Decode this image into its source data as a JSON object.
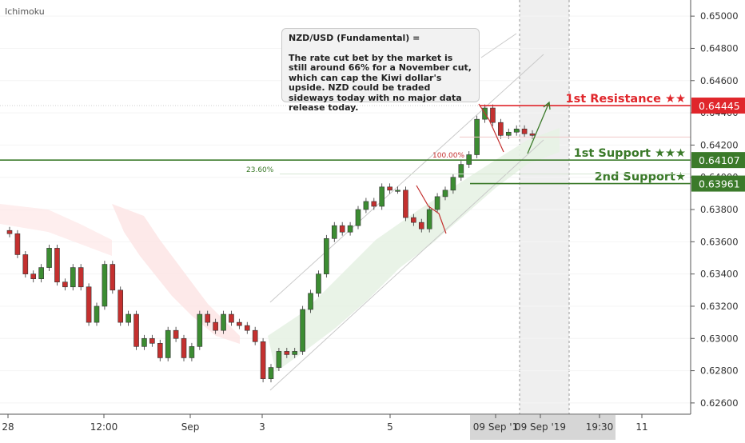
{
  "indicator_label": "Ichimoku",
  "note": {
    "title": "NZD/USD (Fundamental) =",
    "body": "The rate cut bet by the market is still around 66% for a November cut, which can cap the Kiwi dollar's upside. NZD could be traded sideways today with no major data release today."
  },
  "colors": {
    "resistance": "#e0262b",
    "support": "#3b7a2a",
    "up_candle": "#3c8c32",
    "down_candle": "#c4302f"
  },
  "chart_data": {
    "type": "line",
    "title": "",
    "xlabel": "",
    "ylabel": "",
    "ylim": [
      0.6253,
      0.651
    ],
    "y_ticks": [
      "0.65000",
      "0.64800",
      "0.64600",
      "0.64400",
      "0.64200",
      "0.64000",
      "0.63800",
      "0.63600",
      "0.63400",
      "0.63200",
      "0.63000",
      "0.62800",
      "0.62600"
    ],
    "x_ticks": [
      "28",
      "12:00",
      "Sep",
      "3",
      "5",
      "09 Sep '1",
      "09 Sep '19",
      "19:30",
      "11"
    ],
    "series": [
      {
        "values": [
          0.6365,
          0.6352,
          0.634,
          0.6337,
          0.6344,
          0.6356,
          0.6335,
          0.6332,
          0.6344,
          0.6332,
          0.631,
          0.632,
          0.6346,
          0.633,
          0.631,
          0.6315,
          0.6295,
          0.63,
          0.6297,
          0.6288,
          0.6305,
          0.63,
          0.6288,
          0.6295,
          0.6315,
          0.631,
          0.6305,
          0.6315,
          0.631,
          0.6308,
          0.6305,
          0.6298,
          0.6275,
          0.6282,
          0.6292,
          0.629,
          0.6292,
          0.6318,
          0.6328,
          0.634,
          0.6362,
          0.637,
          0.6366,
          0.637,
          0.638,
          0.6385,
          0.6382,
          0.6394,
          0.6392,
          0.6392,
          0.6375,
          0.6372,
          0.6368,
          0.638,
          0.6388,
          0.6392,
          0.64,
          0.6408,
          0.6414,
          0.6436,
          0.6443,
          0.6434,
          0.6426,
          0.6428,
          0.643,
          0.6427,
          0.6426
        ]
      }
    ],
    "levels": [
      {
        "label": "1st Resistance ★★",
        "value": "0.64445",
        "y": 0.64445
      },
      {
        "label": "1st Support ★★★",
        "value": "0.64107",
        "y": 0.64107
      },
      {
        "label": "2nd Support★",
        "value": "0.63961",
        "y": 0.63961
      }
    ],
    "fib_labels": [
      "100.00%",
      "23.60%"
    ]
  }
}
